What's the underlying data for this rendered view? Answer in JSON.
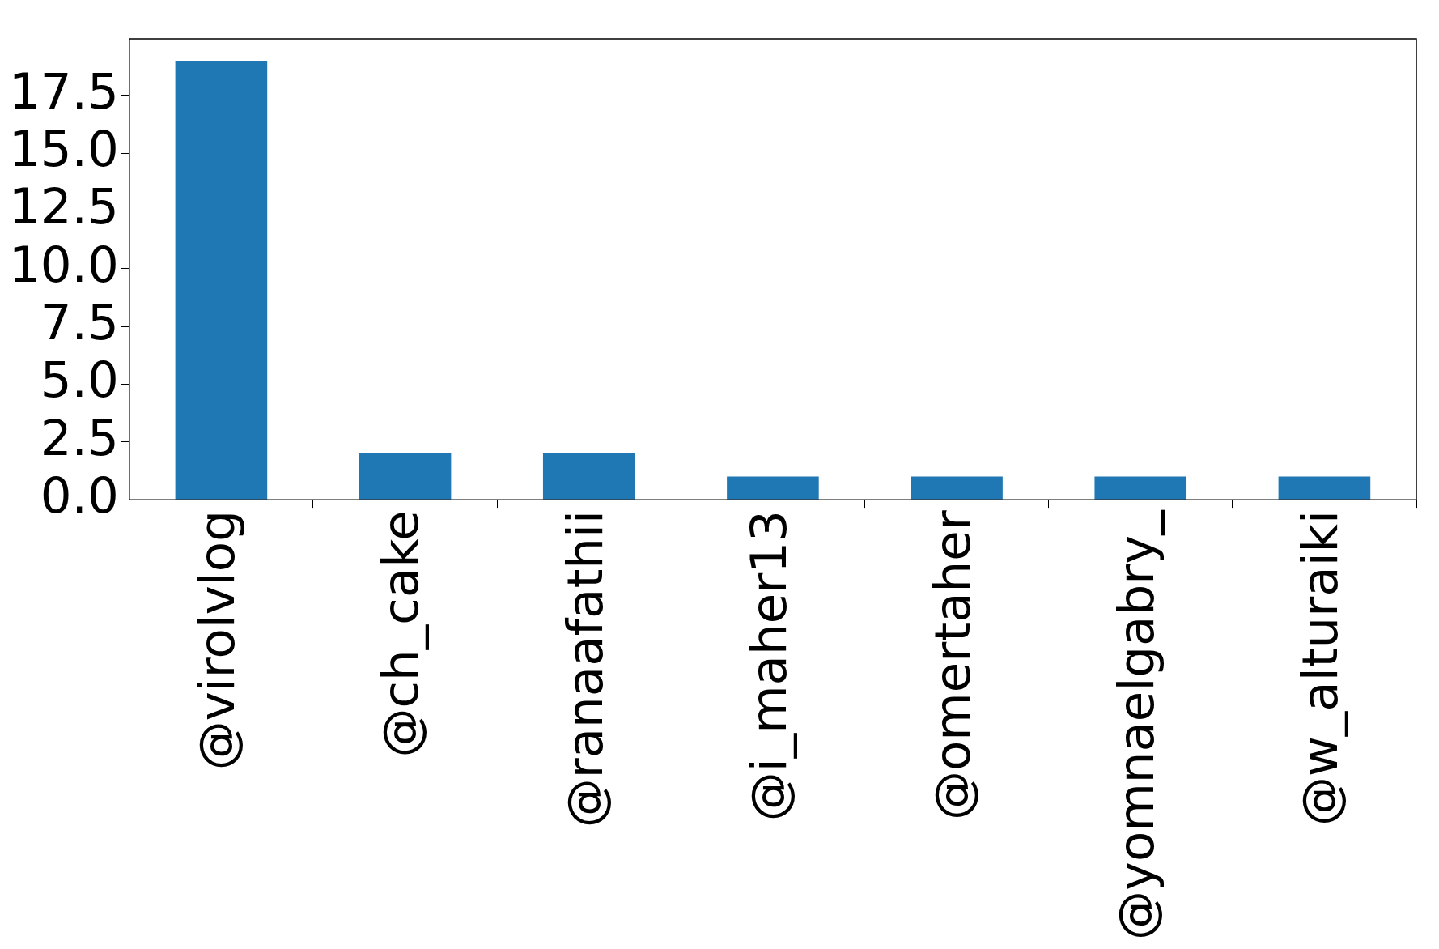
{
  "chart_data": {
    "type": "bar",
    "categories": [
      "@virolvlog",
      "@ch_cake",
      "@ranaafathii",
      "@i_maher13",
      "@omertaher",
      "@yomnaelgabry_",
      "@w_alturaiki"
    ],
    "values": [
      19,
      2,
      2,
      1,
      1,
      1,
      1
    ],
    "color": "#1f77b4",
    "ylim": [
      0,
      19.95
    ],
    "yticks": [
      {
        "value": 0,
        "label": "0.0"
      },
      2.5,
      {
        "value": 5,
        "label": "5.0"
      },
      7.5,
      {
        "value": 10,
        "label": "10.0"
      },
      12.5,
      {
        "value": 15,
        "label": "15.0"
      },
      17.5
    ],
    "grid": false
  }
}
